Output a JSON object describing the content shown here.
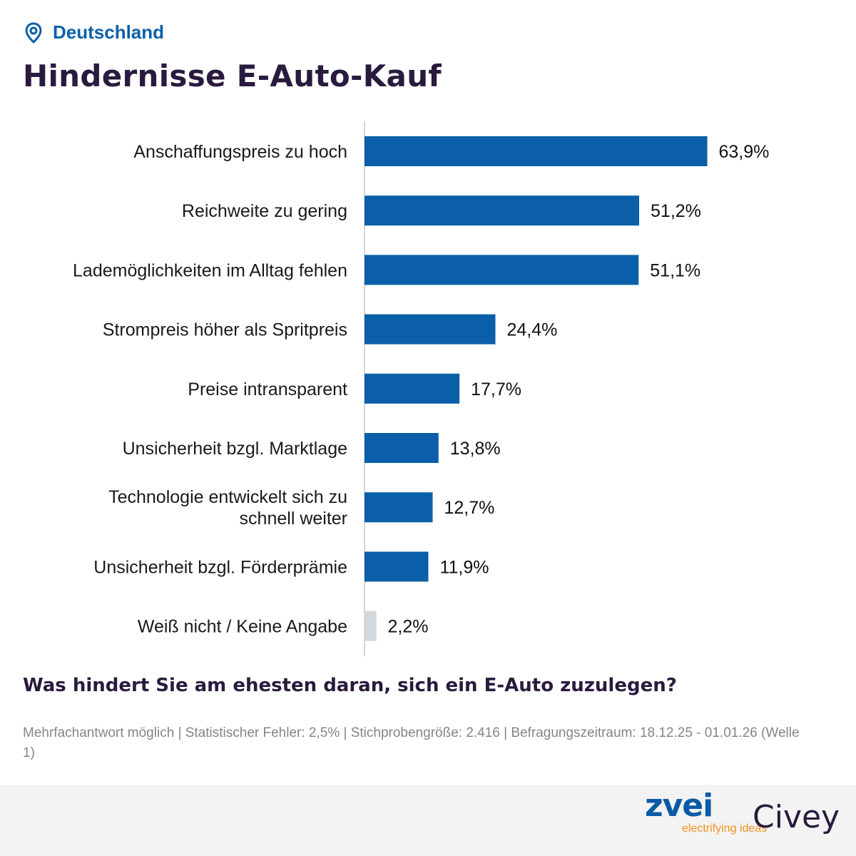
{
  "location": {
    "label": "Deutschland",
    "icon": "location-pin-icon"
  },
  "title": "Hindernisse E-Auto-Kauf",
  "question": "Was hindert Sie am ehesten daran, sich ein E-Auto zuzulegen?",
  "footnote": "Mehrfachantwort möglich | Statistischer Fehler: 2,5% | Stichprobengröße: 2.416 | Befragungszeitraum: 18.12.25 - 01.01.26 (Welle 1)",
  "logos": {
    "zvei": {
      "name": "zvei",
      "tagline": "electrifying ideas"
    },
    "civey": "Civey"
  },
  "colors": {
    "bar": "#0a5fa8",
    "bar_muted": "#d3d8df",
    "title": "#2a1a3e",
    "accent": "#0a5fa8"
  },
  "chart_data": {
    "type": "bar",
    "orientation": "horizontal",
    "categories": [
      "Anschaffungspreis zu hoch",
      "Reichweite zu gering",
      "Lademöglichkeiten im Alltag fehlen",
      "Strompreis höher als Spritpreis",
      "Preise intransparent",
      "Unsicherheit bzgl. Marktlage",
      "Technologie entwickelt sich zu schnell weiter",
      "Unsicherheit bzgl. Förderprämie",
      "Weiß nicht / Keine Angabe"
    ],
    "values": [
      63.9,
      51.2,
      51.1,
      24.4,
      17.7,
      13.8,
      12.7,
      11.9,
      2.2
    ],
    "value_labels": [
      "63,9%",
      "51,2%",
      "51,1%",
      "24,4%",
      "17,7%",
      "13,8%",
      "12,7%",
      "11,9%",
      "2,2%"
    ],
    "muted_categories": [
      "Weiß nicht / Keine Angabe"
    ],
    "unit": "%",
    "xlim": [
      0,
      100
    ],
    "grid": false,
    "legend": "none"
  }
}
